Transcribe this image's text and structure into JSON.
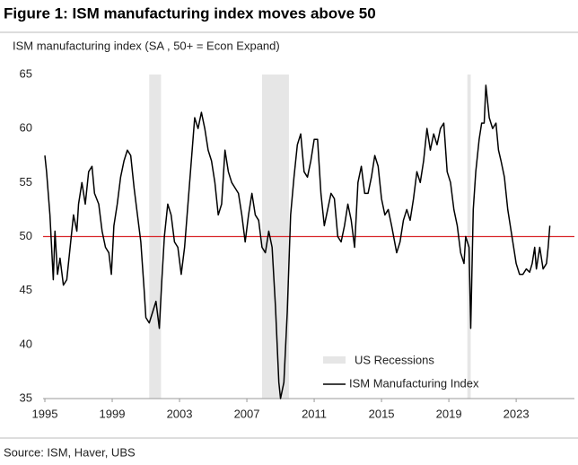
{
  "chart_data": {
    "type": "line",
    "title": "Figure 1: ISM manufacturing index moves above 50",
    "subtitle": "ISM manufacturing index (SA , 50+ = Econ Expand)",
    "source": "Source: ISM, Haver, UBS",
    "x": [
      1995.0,
      1995.1,
      1995.3,
      1995.5,
      1995.6,
      1995.75,
      1995.9,
      1996.1,
      1996.3,
      1996.5,
      1996.7,
      1996.9,
      1997.0,
      1997.2,
      1997.4,
      1997.6,
      1997.8,
      1997.95,
      1998.2,
      1998.4,
      1998.6,
      1998.8,
      1998.95,
      1999.1,
      1999.3,
      1999.5,
      1999.7,
      1999.9,
      2000.1,
      2000.3,
      2000.5,
      2000.7,
      2000.9,
      2001.0,
      2001.2,
      2001.4,
      2001.6,
      2001.8,
      2001.95,
      2002.1,
      2002.3,
      2002.5,
      2002.7,
      2002.9,
      2003.1,
      2003.3,
      2003.5,
      2003.7,
      2003.9,
      2004.1,
      2004.3,
      2004.5,
      2004.7,
      2004.9,
      2005.1,
      2005.3,
      2005.5,
      2005.7,
      2005.9,
      2006.1,
      2006.3,
      2006.5,
      2006.7,
      2006.9,
      2007.1,
      2007.3,
      2007.5,
      2007.7,
      2007.9,
      2008.1,
      2008.3,
      2008.5,
      2008.7,
      2008.9,
      2009.0,
      2009.2,
      2009.4,
      2009.6,
      2009.8,
      2010.0,
      2010.2,
      2010.4,
      2010.6,
      2010.8,
      2011.0,
      2011.2,
      2011.4,
      2011.6,
      2011.8,
      2012.0,
      2012.2,
      2012.4,
      2012.6,
      2012.8,
      2013.0,
      2013.2,
      2013.4,
      2013.6,
      2013.8,
      2014.0,
      2014.2,
      2014.4,
      2014.6,
      2014.8,
      2015.0,
      2015.2,
      2015.4,
      2015.6,
      2015.9,
      2016.1,
      2016.3,
      2016.5,
      2016.7,
      2016.9,
      2017.1,
      2017.3,
      2017.5,
      2017.7,
      2017.9,
      2018.1,
      2018.3,
      2018.5,
      2018.7,
      2018.9,
      2019.1,
      2019.3,
      2019.5,
      2019.7,
      2019.9,
      2020.0,
      2020.2,
      2020.3,
      2020.45,
      2020.6,
      2020.8,
      2020.95,
      2021.1,
      2021.2,
      2021.4,
      2021.6,
      2021.8,
      2021.95,
      2022.1,
      2022.3,
      2022.5,
      2022.7,
      2022.9,
      2023.0,
      2023.2,
      2023.4,
      2023.6,
      2023.8,
      2023.95,
      2024.1,
      2024.2,
      2024.4,
      2024.6,
      2024.8,
      2024.9,
      2025.0
    ],
    "series": [
      {
        "name": "ISM Manufacturing Index",
        "color": "#000000",
        "values": [
          57.5,
          56,
          52,
          46,
          50.5,
          46.5,
          48,
          45.5,
          46,
          49,
          52,
          50.5,
          53,
          55,
          53,
          56,
          56.5,
          54,
          53,
          50.5,
          49,
          48.5,
          46.5,
          51,
          53,
          55.5,
          57,
          58,
          57.5,
          54.5,
          52,
          49.5,
          45,
          42.5,
          42,
          43,
          44,
          41.5,
          46,
          50,
          53,
          52,
          49.5,
          49,
          46.5,
          49,
          53,
          57,
          61,
          60,
          61.5,
          60,
          58,
          57,
          55,
          52,
          53,
          58,
          56,
          55,
          54.5,
          54,
          52,
          49.5,
          52,
          54,
          52,
          51.5,
          49,
          48.5,
          50.5,
          49,
          43.5,
          36.5,
          35,
          36.5,
          43,
          52,
          55.5,
          58.5,
          59.5,
          56,
          55.5,
          57,
          59,
          59,
          54,
          51,
          52.5,
          54,
          53.5,
          50,
          49.5,
          51,
          53,
          51.5,
          49,
          55,
          56.5,
          54,
          54,
          55.5,
          57.5,
          56.5,
          53.5,
          52,
          52.5,
          51,
          48.5,
          49.5,
          51.5,
          52.5,
          51.5,
          53.5,
          56,
          55,
          57,
          60,
          58,
          59.5,
          58.5,
          60,
          60.5,
          56,
          55,
          52.5,
          51,
          48.5,
          47.5,
          50,
          49,
          41.5,
          52.5,
          56,
          59,
          60.5,
          60.5,
          64,
          61,
          60,
          60.5,
          58,
          57,
          55.5,
          52.5,
          50.5,
          48.5,
          47.5,
          46.5,
          46.5,
          47,
          46.7,
          47.5,
          49,
          47,
          49,
          47,
          47.5,
          49,
          51
        ]
      }
    ],
    "recessions": {
      "name": "US Recessions",
      "color": "#e6e6e6",
      "spans": [
        [
          2001.2,
          2001.9
        ],
        [
          2007.9,
          2009.5
        ],
        [
          2020.1,
          2020.3
        ]
      ]
    },
    "reference_line": {
      "value": 50,
      "color": "#d9262b"
    },
    "xlim": [
      1995,
      2025.5
    ],
    "xticks": [
      1995,
      1999,
      2003,
      2007,
      2011,
      2015,
      2019,
      2023
    ],
    "ylim": [
      35,
      65
    ],
    "yticks": [
      35,
      40,
      45,
      50,
      55,
      60,
      65
    ],
    "grid": false
  }
}
